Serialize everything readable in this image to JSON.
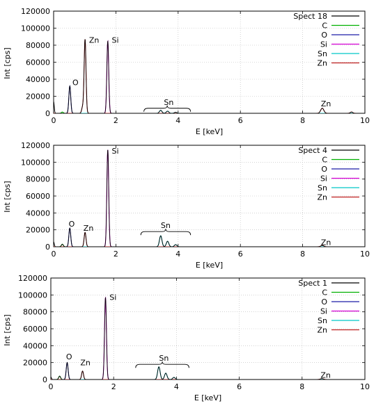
{
  "chart_data": [
    {
      "type": "line",
      "xlabel": "E [keV]",
      "ylabel": "Int [cps]",
      "xlim": [
        0,
        10
      ],
      "ylim": [
        0,
        120000
      ],
      "xticks": [
        "0",
        "2",
        "4",
        "6",
        "8",
        "10"
      ],
      "yticks": [
        "0",
        "20000",
        "40000",
        "60000",
        "80000",
        "100000",
        "120000"
      ],
      "grid": true,
      "legend_position": "top-right",
      "legend": [
        {
          "label": "Spect 18",
          "color": "#000000"
        },
        {
          "label": "C",
          "color": "#00b000"
        },
        {
          "label": "O",
          "color": "#1c1ca8"
        },
        {
          "label": "Si",
          "color": "#d400d4"
        },
        {
          "label": "Sn",
          "color": "#00c8c8"
        },
        {
          "label": "Zn",
          "color": "#c02020"
        }
      ],
      "series": [
        {
          "name": "Spect 18",
          "color": "#000000",
          "peaks": [
            [
              0.0,
              14000,
              0.02
            ],
            [
              0.52,
              32000,
              0.03
            ],
            [
              0.93,
              7000,
              0.03
            ],
            [
              1.01,
              87000,
              0.03
            ],
            [
              1.74,
              85000,
              0.03
            ],
            [
              3.44,
              3500,
              0.04
            ],
            [
              3.66,
              2500,
              0.04
            ],
            [
              3.92,
              1200,
              0.04
            ],
            [
              8.63,
              6000,
              0.05
            ],
            [
              9.57,
              1500,
              0.04
            ]
          ]
        },
        {
          "name": "C",
          "color": "#00b000",
          "peaks": [
            [
              0.28,
              1500,
              0.03
            ]
          ]
        },
        {
          "name": "O",
          "color": "#1c1ca8",
          "peaks": [
            [
              0.52,
              32000,
              0.03
            ]
          ]
        },
        {
          "name": "Si",
          "color": "#d400d4",
          "peaks": [
            [
              1.74,
              85000,
              0.03
            ]
          ]
        },
        {
          "name": "Sn",
          "color": "#00c8c8",
          "peaks": [
            [
              3.44,
              3500,
              0.04
            ],
            [
              3.66,
              2500,
              0.04
            ],
            [
              3.92,
              1200,
              0.04
            ]
          ]
        },
        {
          "name": "Zn",
          "color": "#c02020",
          "peaks": [
            [
              0.93,
              7000,
              0.03
            ],
            [
              1.01,
              87000,
              0.03
            ],
            [
              8.63,
              6000,
              0.05
            ],
            [
              9.57,
              1500,
              0.04
            ]
          ]
        }
      ],
      "annotations": [
        {
          "text": "O",
          "x": 0.7,
          "y": 33000
        },
        {
          "text": "Zn",
          "x": 1.3,
          "y": 83000
        },
        {
          "text": "Si",
          "x": 1.98,
          "y": 83000
        },
        {
          "text": "Sn",
          "x": 3.7,
          "y": 10000
        },
        {
          "text": "Zn",
          "x": 8.75,
          "y": 8000
        }
      ],
      "brace": {
        "x_from": 2.9,
        "x_to": 4.4
      }
    },
    {
      "type": "line",
      "xlabel": "E [keV]",
      "ylabel": "Int [cps]",
      "xlim": [
        0,
        10
      ],
      "ylim": [
        0,
        120000
      ],
      "xticks": [
        "0",
        "2",
        "4",
        "6",
        "8",
        "10"
      ],
      "yticks": [
        "0",
        "20000",
        "40000",
        "60000",
        "80000",
        "100000",
        "120000"
      ],
      "grid": true,
      "legend_position": "top-right",
      "legend": [
        {
          "label": "Spect 4",
          "color": "#000000"
        },
        {
          "label": "C",
          "color": "#00b000"
        },
        {
          "label": "O",
          "color": "#1c1ca8"
        },
        {
          "label": "Si",
          "color": "#d400d4"
        },
        {
          "label": "Sn",
          "color": "#00c8c8"
        },
        {
          "label": "Zn",
          "color": "#c02020"
        }
      ],
      "series": [
        {
          "name": "Spect 4",
          "color": "#000000",
          "peaks": [
            [
              0.0,
              6000,
              0.02
            ],
            [
              0.28,
              3000,
              0.03
            ],
            [
              0.52,
              22000,
              0.03
            ],
            [
              1.01,
              17000,
              0.03
            ],
            [
              1.74,
              115000,
              0.03
            ],
            [
              3.44,
              13000,
              0.04
            ],
            [
              3.66,
              6500,
              0.04
            ],
            [
              3.92,
              2500,
              0.04
            ],
            [
              8.63,
              1500,
              0.05
            ]
          ]
        },
        {
          "name": "C",
          "color": "#00b000",
          "peaks": [
            [
              0.28,
              3000,
              0.03
            ]
          ]
        },
        {
          "name": "O",
          "color": "#1c1ca8",
          "peaks": [
            [
              0.52,
              22000,
              0.03
            ]
          ]
        },
        {
          "name": "Si",
          "color": "#d400d4",
          "peaks": [
            [
              1.74,
              115000,
              0.03
            ]
          ]
        },
        {
          "name": "Sn",
          "color": "#00c8c8",
          "peaks": [
            [
              3.44,
              13000,
              0.04
            ],
            [
              3.66,
              6500,
              0.04
            ],
            [
              3.92,
              2500,
              0.04
            ]
          ]
        },
        {
          "name": "Zn",
          "color": "#c02020",
          "peaks": [
            [
              1.01,
              17000,
              0.03
            ],
            [
              8.63,
              1500,
              0.05
            ]
          ]
        }
      ],
      "annotations": [
        {
          "text": "O",
          "x": 0.58,
          "y": 24000
        },
        {
          "text": "Zn",
          "x": 1.12,
          "y": 19000
        },
        {
          "text": "Si",
          "x": 1.98,
          "y": 110000
        },
        {
          "text": "Sn",
          "x": 3.6,
          "y": 22000
        },
        {
          "text": "Zn",
          "x": 8.75,
          "y": 2000
        }
      ],
      "brace": {
        "x_from": 2.8,
        "x_to": 4.4
      }
    },
    {
      "type": "line",
      "xlabel": "E [keV]",
      "ylabel": "Int [cps]",
      "xlim": [
        0,
        10
      ],
      "ylim": [
        0,
        120000
      ],
      "xticks": [
        "0",
        "2",
        "4",
        "6",
        "8",
        "10"
      ],
      "yticks": [
        "0",
        "20000",
        "40000",
        "60000",
        "80000",
        "100000",
        "120000"
      ],
      "grid": true,
      "legend_position": "top-right",
      "legend": [
        {
          "label": "Spect 1",
          "color": "#000000"
        },
        {
          "label": "C",
          "color": "#00b000"
        },
        {
          "label": "O",
          "color": "#1c1ca8"
        },
        {
          "label": "Si",
          "color": "#d400d4"
        },
        {
          "label": "Sn",
          "color": "#00c8c8"
        },
        {
          "label": "Zn",
          "color": "#c02020"
        }
      ],
      "series": [
        {
          "name": "Spect 1",
          "color": "#000000",
          "peaks": [
            [
              0.0,
              3000,
              0.02
            ],
            [
              0.28,
              4000,
              0.03
            ],
            [
              0.52,
              20000,
              0.03
            ],
            [
              1.01,
              10000,
              0.03
            ],
            [
              1.74,
              97000,
              0.03
            ],
            [
              3.44,
              15000,
              0.04
            ],
            [
              3.66,
              7500,
              0.04
            ],
            [
              3.92,
              2500,
              0.04
            ],
            [
              8.63,
              1000,
              0.05
            ]
          ]
        },
        {
          "name": "C",
          "color": "#00b000",
          "peaks": [
            [
              0.28,
              4000,
              0.03
            ]
          ]
        },
        {
          "name": "O",
          "color": "#1c1ca8",
          "peaks": [
            [
              0.52,
              20000,
              0.03
            ]
          ]
        },
        {
          "name": "Si",
          "color": "#d400d4",
          "peaks": [
            [
              1.74,
              97000,
              0.03
            ]
          ]
        },
        {
          "name": "Sn",
          "color": "#00c8c8",
          "peaks": [
            [
              3.44,
              15000,
              0.04
            ],
            [
              3.66,
              7500,
              0.04
            ],
            [
              3.92,
              2500,
              0.04
            ]
          ]
        },
        {
          "name": "Zn",
          "color": "#c02020",
          "peaks": [
            [
              1.01,
              10000,
              0.03
            ],
            [
              8.63,
              1000,
              0.05
            ]
          ]
        }
      ],
      "annotations": [
        {
          "text": "O",
          "x": 0.58,
          "y": 24000
        },
        {
          "text": "Zn",
          "x": 1.1,
          "y": 17000
        },
        {
          "text": "Si",
          "x": 1.98,
          "y": 94000
        },
        {
          "text": "Sn",
          "x": 3.6,
          "y": 22000
        },
        {
          "text": "Zn",
          "x": 8.75,
          "y": 2000
        }
      ],
      "brace": {
        "x_from": 2.7,
        "x_to": 4.4
      }
    }
  ]
}
